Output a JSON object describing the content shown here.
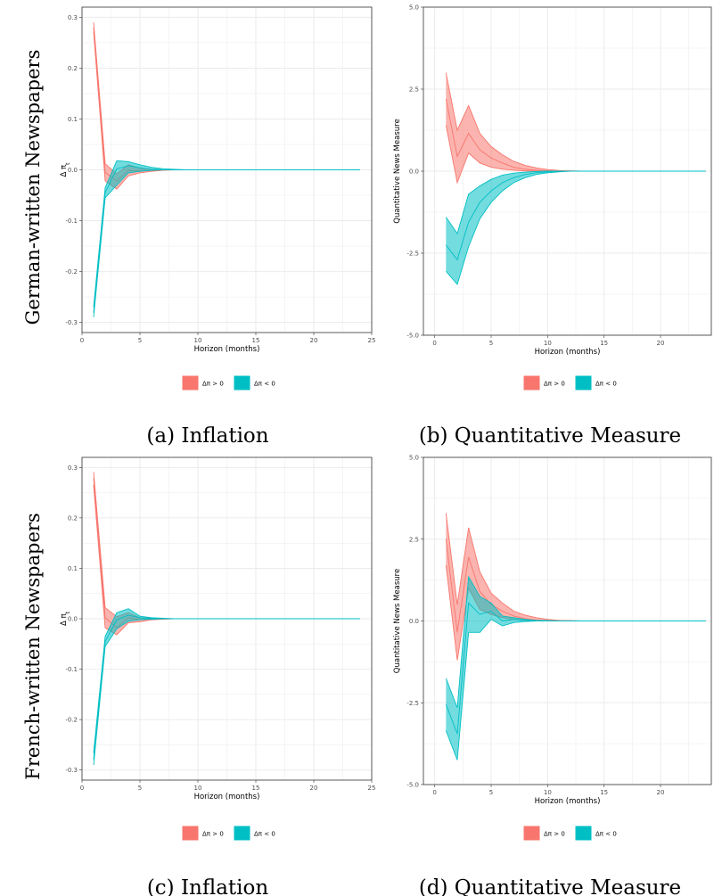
{
  "row_labels": [
    "German-written Newspapers",
    "French-written Newspapers"
  ],
  "legend": [
    "Δπ > 0",
    "Δπ < 0"
  ],
  "colors": {
    "pos": "#F8766D",
    "neg": "#00BFC4",
    "grid": "#ebebeb"
  },
  "chart_data": [
    {
      "type": "area",
      "caption": "(a) Inflation",
      "xlabel": "Horizon (months)",
      "ylabel": "Δ π_t",
      "xlim": [
        0,
        25
      ],
      "ylim": [
        -0.32,
        0.32
      ],
      "xticks": [
        0,
        5,
        10,
        15,
        20,
        25
      ],
      "yticks": [
        -0.3,
        -0.2,
        -0.1,
        0.0,
        0.1,
        0.2,
        0.3
      ],
      "ytick_labels": [
        "-0.3",
        "-0.2",
        "-0.1",
        "0.0",
        "0.1",
        "0.2",
        "0.3"
      ],
      "x": [
        1,
        2,
        3,
        4,
        5,
        6,
        7,
        8,
        9,
        10,
        11,
        12,
        13,
        14,
        15,
        16,
        17,
        18,
        19,
        20,
        21,
        22,
        23,
        24
      ],
      "series": [
        {
          "name": "Δπ > 0",
          "lower": [
            0.272,
            -0.022,
            -0.038,
            -0.012,
            -0.006,
            -0.003,
            -0.001,
            0,
            0,
            0,
            0,
            0,
            0,
            0,
            0,
            0,
            0,
            0,
            0,
            0,
            0,
            0,
            0,
            0
          ],
          "mid": [
            0.28,
            -0.005,
            -0.022,
            -0.001,
            -0.002,
            -0.001,
            0,
            0,
            0,
            0,
            0,
            0,
            0,
            0,
            0,
            0,
            0,
            0,
            0,
            0,
            0,
            0,
            0,
            0
          ],
          "upper": [
            0.29,
            0.012,
            -0.008,
            0.01,
            0.003,
            0.001,
            0,
            0,
            0,
            0,
            0,
            0,
            0,
            0,
            0,
            0,
            0,
            0,
            0,
            0,
            0,
            0,
            0,
            0
          ]
        },
        {
          "name": "Δπ < 0",
          "lower": [
            -0.29,
            -0.055,
            -0.03,
            -0.006,
            -0.003,
            -0.001,
            0,
            0,
            0,
            0,
            0,
            0,
            0,
            0,
            0,
            0,
            0,
            0,
            0,
            0,
            0,
            0,
            0,
            0
          ],
          "mid": [
            -0.281,
            -0.045,
            0.002,
            0.008,
            0.004,
            0.001,
            0,
            0,
            0,
            0,
            0,
            0,
            0,
            0,
            0,
            0,
            0,
            0,
            0,
            0,
            0,
            0,
            0,
            0
          ],
          "upper": [
            -0.27,
            -0.035,
            0.018,
            0.016,
            0.01,
            0.005,
            0.002,
            0.001,
            0,
            0,
            0,
            0,
            0,
            0,
            0,
            0,
            0,
            0,
            0,
            0,
            0,
            0,
            0,
            0
          ]
        }
      ]
    },
    {
      "type": "area",
      "caption": "(b) Quantitative Measure",
      "xlabel": "Horizon (months)",
      "ylabel": "Quantitative News Measure",
      "xlim": [
        -1,
        24.5
      ],
      "ylim": [
        -5,
        5
      ],
      "xticks": [
        0,
        5,
        10,
        15,
        20,
        25
      ],
      "yticks": [
        -5,
        -2.5,
        0,
        2.5,
        5
      ],
      "ytick_labels": [
        "-5.0",
        "-2.5",
        "0.0",
        "2.5",
        "5.0"
      ],
      "x": [
        1,
        2,
        3,
        4,
        5,
        6,
        7,
        8,
        9,
        10,
        11,
        12,
        13,
        14,
        15,
        16,
        17,
        18,
        19,
        20,
        21,
        22,
        23,
        24
      ],
      "series": [
        {
          "name": "Δπ > 0",
          "lower": [
            1.4,
            -0.35,
            0.55,
            0.25,
            0.12,
            0.06,
            0.03,
            0.01,
            0,
            0,
            0,
            0,
            0,
            0,
            0,
            0,
            0,
            0,
            0,
            0,
            0,
            0,
            0,
            0
          ],
          "mid": [
            2.2,
            0.45,
            1.15,
            0.65,
            0.4,
            0.25,
            0.12,
            0.06,
            0.03,
            0.01,
            0,
            0,
            0,
            0,
            0,
            0,
            0,
            0,
            0,
            0,
            0,
            0,
            0,
            0
          ],
          "upper": [
            3.0,
            1.25,
            2.0,
            1.15,
            0.75,
            0.5,
            0.3,
            0.18,
            0.1,
            0.05,
            0.02,
            0.01,
            0,
            0,
            0,
            0,
            0,
            0,
            0,
            0,
            0,
            0,
            0,
            0
          ]
        },
        {
          "name": "Δπ < 0",
          "lower": [
            -3.05,
            -3.45,
            -2.3,
            -1.45,
            -0.95,
            -0.6,
            -0.35,
            -0.2,
            -0.1,
            -0.05,
            -0.02,
            0,
            0,
            0,
            0,
            0,
            0,
            0,
            0,
            0,
            0,
            0,
            0,
            0
          ],
          "mid": [
            -2.25,
            -2.7,
            -1.55,
            -0.95,
            -0.6,
            -0.35,
            -0.2,
            -0.1,
            -0.05,
            -0.02,
            0,
            0,
            0,
            0,
            0,
            0,
            0,
            0,
            0,
            0,
            0,
            0,
            0,
            0
          ],
          "upper": [
            -1.4,
            -1.9,
            -0.7,
            -0.45,
            -0.25,
            -0.12,
            -0.06,
            -0.03,
            -0.01,
            0,
            0,
            0,
            0,
            0,
            0,
            0,
            0,
            0,
            0,
            0,
            0,
            0,
            0,
            0
          ]
        }
      ]
    },
    {
      "type": "area",
      "caption": "(c) Inflation",
      "xlabel": "Horizon (months)",
      "ylabel": "Δ π_t",
      "xlim": [
        0,
        25
      ],
      "ylim": [
        -0.32,
        0.32
      ],
      "xticks": [
        0,
        5,
        10,
        15,
        20,
        25
      ],
      "yticks": [
        -0.3,
        -0.2,
        -0.1,
        0.0,
        0.1,
        0.2,
        0.3
      ],
      "ytick_labels": [
        "-0.3",
        "-0.2",
        "-0.1",
        "0.0",
        "0.1",
        "0.2",
        "0.3"
      ],
      "x": [
        1,
        2,
        3,
        4,
        5,
        6,
        7,
        8,
        9,
        10,
        11,
        12,
        13,
        14,
        15,
        16,
        17,
        18,
        19,
        20,
        21,
        22,
        23,
        24
      ],
      "series": [
        {
          "name": "Δπ > 0",
          "lower": [
            0.265,
            -0.018,
            -0.032,
            -0.008,
            -0.006,
            -0.002,
            -0.001,
            0,
            0,
            0,
            0,
            0,
            0,
            0,
            0,
            0,
            0,
            0,
            0,
            0,
            0,
            0,
            0,
            0
          ],
          "mid": [
            0.278,
            0.002,
            -0.018,
            0.002,
            -0.002,
            0,
            0,
            0,
            0,
            0,
            0,
            0,
            0,
            0,
            0,
            0,
            0,
            0,
            0,
            0,
            0,
            0,
            0,
            0
          ],
          "upper": [
            0.291,
            0.022,
            0.004,
            0.012,
            0.002,
            0.001,
            0,
            0,
            0,
            0,
            0,
            0,
            0,
            0,
            0,
            0,
            0,
            0,
            0,
            0,
            0,
            0,
            0,
            0
          ]
        },
        {
          "name": "Δπ < 0",
          "lower": [
            -0.29,
            -0.055,
            -0.02,
            -0.005,
            -0.002,
            -0.001,
            0,
            0,
            0,
            0,
            0,
            0,
            0,
            0,
            0,
            0,
            0,
            0,
            0,
            0,
            0,
            0,
            0,
            0
          ],
          "mid": [
            -0.279,
            -0.045,
            -0.002,
            0.007,
            0.002,
            0,
            0,
            0,
            0,
            0,
            0,
            0,
            0,
            0,
            0,
            0,
            0,
            0,
            0,
            0,
            0,
            0,
            0,
            0
          ],
          "upper": [
            -0.266,
            -0.035,
            0.012,
            0.02,
            0.005,
            0.002,
            0.001,
            0,
            0,
            0,
            0,
            0,
            0,
            0,
            0,
            0,
            0,
            0,
            0,
            0,
            0,
            0,
            0,
            0
          ]
        }
      ]
    },
    {
      "type": "area",
      "caption": "(d) Quantitative Measure",
      "xlabel": "Horizon (months)",
      "ylabel": "Quantitative News Measure",
      "xlim": [
        -1,
        24.5
      ],
      "ylim": [
        -5,
        5
      ],
      "xticks": [
        0,
        5,
        10,
        15,
        20,
        25
      ],
      "yticks": [
        -5,
        -2.5,
        0,
        2.5,
        5
      ],
      "ytick_labels": [
        "-5.0",
        "-2.5",
        "0.0",
        "2.5",
        "5.0"
      ],
      "x": [
        1,
        2,
        3,
        4,
        5,
        6,
        7,
        8,
        9,
        10,
        11,
        12,
        13,
        14,
        15,
        16,
        17,
        18,
        19,
        20,
        21,
        22,
        23,
        24
      ],
      "series": [
        {
          "name": "Δπ > 0",
          "lower": [
            1.7,
            -1.2,
            1.0,
            0.35,
            0.2,
            0.1,
            0.05,
            0.02,
            0,
            0,
            0,
            0,
            0,
            0,
            0,
            0,
            0,
            0,
            0,
            0,
            0,
            0,
            0,
            0
          ],
          "mid": [
            2.5,
            -0.35,
            1.95,
            0.9,
            0.5,
            0.3,
            0.15,
            0.07,
            0.03,
            0.01,
            0,
            0,
            0,
            0,
            0,
            0,
            0,
            0,
            0,
            0,
            0,
            0,
            0,
            0
          ],
          "upper": [
            3.3,
            0.5,
            2.85,
            1.5,
            0.85,
            0.55,
            0.3,
            0.18,
            0.1,
            0.05,
            0.02,
            0.01,
            0,
            0,
            0,
            0,
            0,
            0,
            0,
            0,
            0,
            0,
            0,
            0
          ]
        },
        {
          "name": "Δπ < 0",
          "lower": [
            -3.35,
            -4.25,
            -0.35,
            -0.35,
            0.05,
            -0.15,
            -0.05,
            -0.02,
            0,
            0,
            0,
            0,
            0,
            0,
            0,
            0,
            0,
            0,
            0,
            0,
            0,
            0,
            0,
            0
          ],
          "mid": [
            -2.55,
            -3.45,
            0.55,
            0.2,
            0.3,
            0.0,
            0.05,
            0.02,
            0.01,
            0,
            0,
            0,
            0,
            0,
            0,
            0,
            0,
            0,
            0,
            0,
            0,
            0,
            0,
            0
          ],
          "upper": [
            -1.75,
            -2.65,
            1.35,
            0.75,
            0.55,
            0.15,
            0.1,
            0.05,
            0.02,
            0.01,
            0,
            0,
            0,
            0,
            0,
            0,
            0,
            0,
            0,
            0,
            0,
            0,
            0,
            0
          ]
        }
      ]
    }
  ]
}
